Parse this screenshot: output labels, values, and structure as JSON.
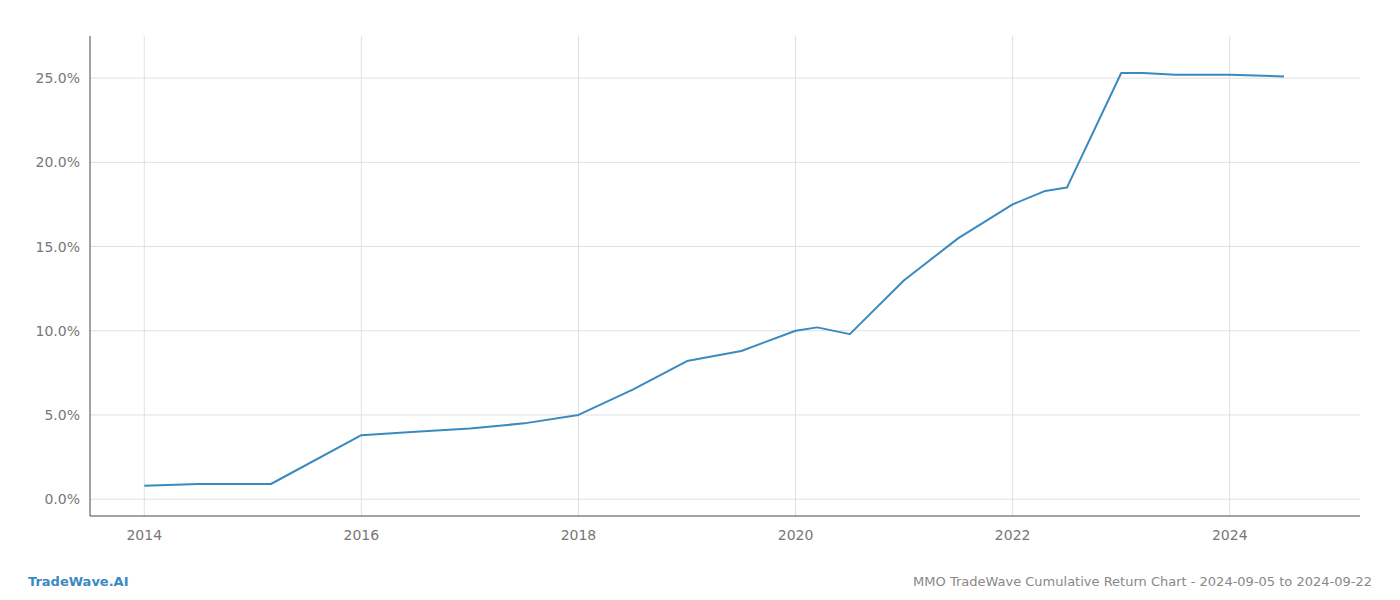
{
  "chart_data": {
    "type": "line",
    "x": [
      2014,
      2014.5,
      2015,
      2015.167,
      2016,
      2016.5,
      2017,
      2017.5,
      2018,
      2018.5,
      2019,
      2019.5,
      2020,
      2020.2,
      2020.5,
      2021,
      2021.5,
      2022,
      2022.3,
      2022.5,
      2023.0,
      2023.2,
      2023.5,
      2024.0,
      2024.5
    ],
    "values": [
      0.008,
      0.009,
      0.009,
      0.009,
      0.038,
      0.04,
      0.042,
      0.045,
      0.05,
      0.065,
      0.082,
      0.088,
      0.1,
      0.102,
      0.098,
      0.13,
      0.155,
      0.175,
      0.183,
      0.185,
      0.253,
      0.253,
      0.252,
      0.252,
      0.251
    ],
    "color": "#3a8abf",
    "xlim": [
      2013.5,
      2025.2
    ],
    "ylim": [
      -0.01,
      0.275
    ],
    "xticks": [
      2014,
      2016,
      2018,
      2020,
      2022,
      2024
    ],
    "yticks": [
      {
        "value": 0.0,
        "label": "0.0%"
      },
      {
        "value": 0.05,
        "label": "5.0%"
      },
      {
        "value": 0.1,
        "label": "10.0%"
      },
      {
        "value": 0.15,
        "label": "15.0%"
      },
      {
        "value": 0.2,
        "label": "20.0%"
      },
      {
        "value": 0.25,
        "label": "25.0%"
      }
    ],
    "grid": true,
    "annotations": [
      {
        "text": "TradeWave.AI",
        "color": "#3a8abf"
      },
      {
        "text": "MMO TradeWave Cumulative Return Chart - 2024-09-05 to 2024-09-22"
      }
    ]
  }
}
